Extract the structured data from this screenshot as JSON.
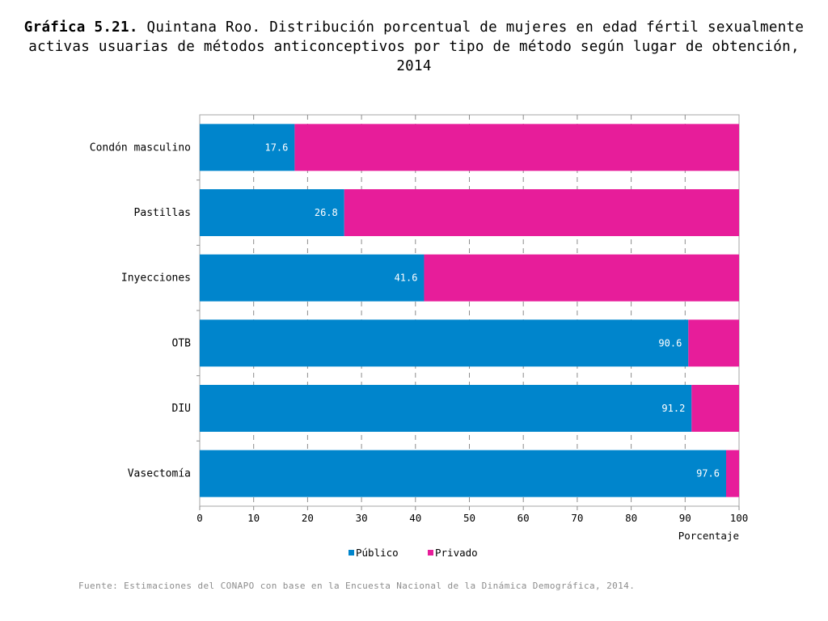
{
  "title": {
    "lead": "Gráfica 5.21.",
    "text": " Quintana Roo. Distribución porcentual de mujeres en edad fértil sexualmente activas usuarias de métodos anticonceptivos por tipo de método según lugar de obtención, 2014"
  },
  "source": "Fuente: Estimaciones del CONAPO con base en la Encuesta Nacional de la Dinámica Demográfica, 2014.",
  "colors": {
    "publico": "#0085cc",
    "privado": "#e71d9a"
  },
  "chart_data": {
    "type": "bar",
    "orientation": "horizontal",
    "stacked": true,
    "categories": [
      "Condón masculino",
      "Pastillas",
      "Inyecciones",
      "OTB",
      "DIU",
      "Vasectomía"
    ],
    "series": [
      {
        "name": "Público",
        "values": [
          17.6,
          26.8,
          41.6,
          90.6,
          91.2,
          97.6
        ]
      },
      {
        "name": "Privado",
        "values": [
          82.4,
          73.2,
          58.4,
          9.4,
          8.8,
          2.4
        ]
      }
    ],
    "data_labels": [
      "17.6",
      "26.8",
      "41.6",
      "90.6",
      "91.2",
      "97.6"
    ],
    "xlabel": "Porcentaje",
    "xlim": [
      0,
      100
    ],
    "xticks": [
      "0",
      "10",
      "20",
      "30",
      "40",
      "50",
      "60",
      "70",
      "80",
      "90",
      "100"
    ],
    "grid": "vertical dashed",
    "legend": "bottom-center"
  }
}
